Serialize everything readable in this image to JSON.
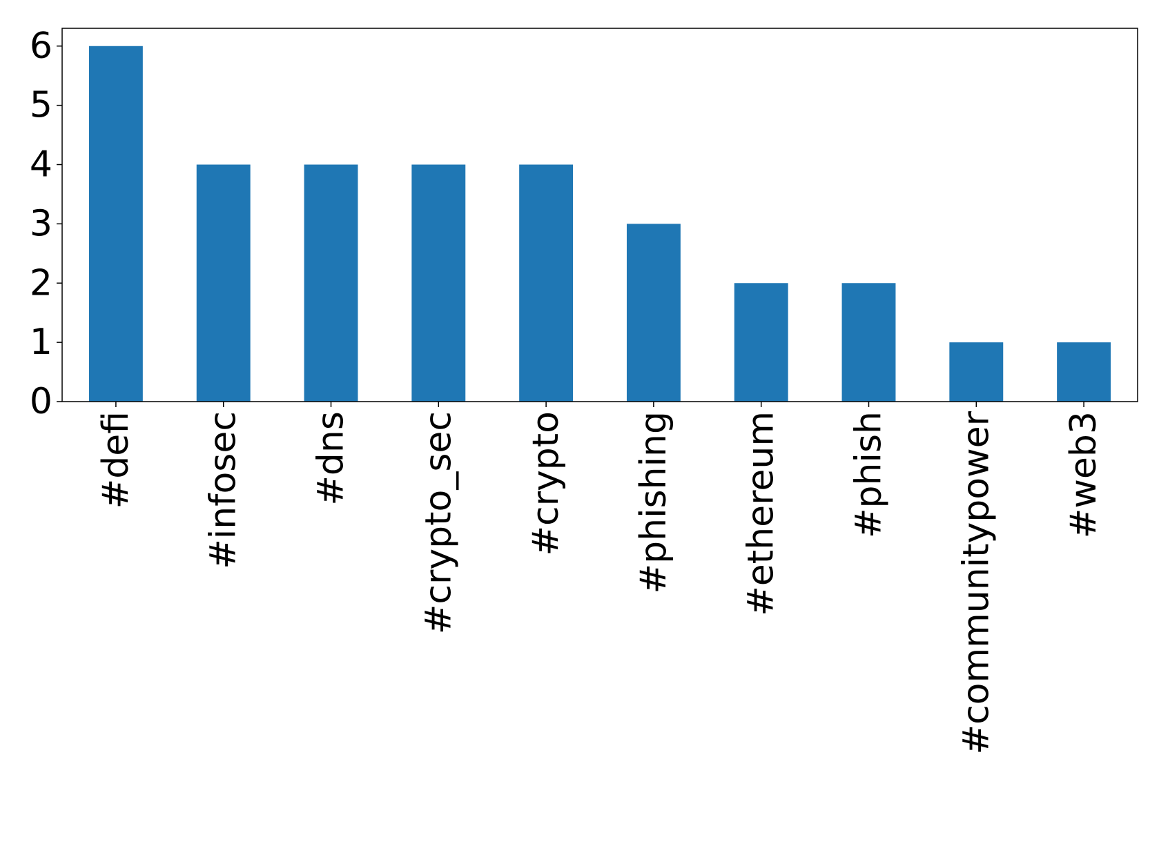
{
  "chart_data": {
    "type": "bar",
    "categories": [
      "#defi",
      "#infosec",
      "#dns",
      "#crypto_sec",
      "#crypto",
      "#phishing",
      "#ethereum",
      "#phish",
      "#communitypower",
      "#web3"
    ],
    "values": [
      6,
      4,
      4,
      4,
      4,
      3,
      2,
      2,
      1,
      1
    ],
    "color": "#1f77b4",
    "ylim": [
      0,
      6.3
    ],
    "yticks": [
      0,
      1,
      2,
      3,
      4,
      5,
      6
    ],
    "grid": false
  }
}
